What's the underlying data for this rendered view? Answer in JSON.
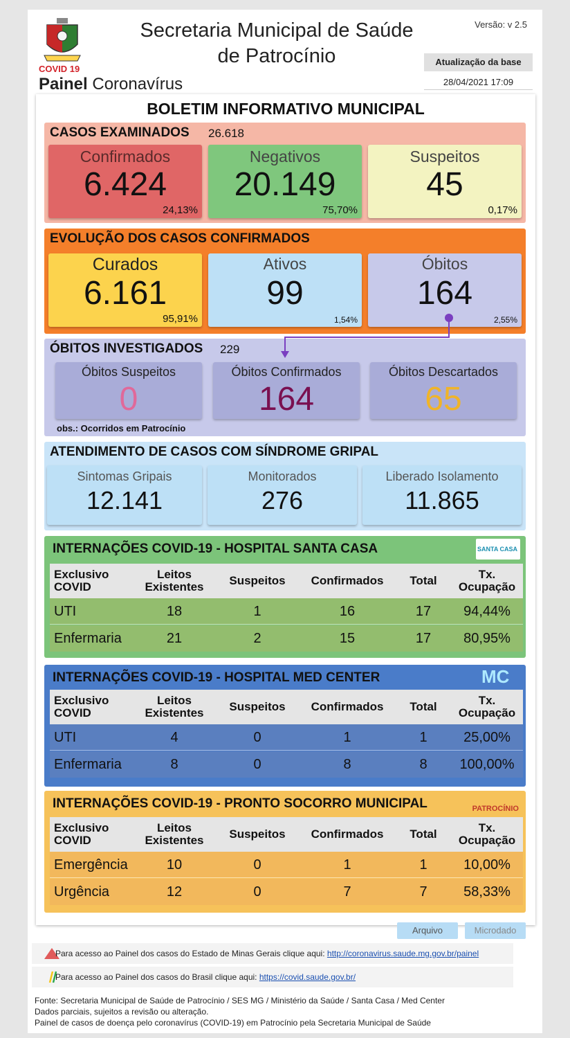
{
  "header": {
    "title_line1": "Secretaria Municipal de Saúde",
    "title_line2": "de Patrocínio",
    "covid_label": "COVID 19",
    "painel_bold": "Painel",
    "painel_rest": " Coronavírus",
    "version": "Versão: v 2.5",
    "update_label": "Atualização da base",
    "update_datetime": "28/04/2021 17:09"
  },
  "bulletin_title": "BOLETIM INFORMATIVO MUNICIPAL",
  "examined": {
    "title": "CASOS EXAMINADOS",
    "total": "26.618",
    "cards": [
      {
        "label": "Confirmados",
        "value": "6.424",
        "pct": "24,13%"
      },
      {
        "label": "Negativos",
        "value": "20.149",
        "pct": "75,70%"
      },
      {
        "label": "Suspeitos",
        "value": "45",
        "pct": "0,17%"
      }
    ]
  },
  "evolution": {
    "title": "EVOLUÇÃO DOS CASOS CONFIRMADOS",
    "cards": [
      {
        "label": "Curados",
        "value": "6.161",
        "pct": "95,91%"
      },
      {
        "label": "Ativos",
        "value": "99",
        "pct": "1,54%"
      },
      {
        "label": "Óbitos",
        "value": "164",
        "pct": "2,55%"
      }
    ]
  },
  "deaths": {
    "title": "ÓBITOS INVESTIGADOS",
    "total": "229",
    "cards": [
      {
        "label": "Óbitos Suspeitos",
        "value": "0"
      },
      {
        "label": "Óbitos Confirmados",
        "value": "164"
      },
      {
        "label": "Óbitos Descartados",
        "value": "65"
      }
    ],
    "note": "obs.: Ocorridos em Patrocínio"
  },
  "flu": {
    "title": "ATENDIMENTO DE CASOS COM SÍNDROME GRIPAL",
    "cards": [
      {
        "label": "Sintomas Gripais",
        "value": "12.141"
      },
      {
        "label": "Monitorados",
        "value": "276"
      },
      {
        "label": "Liberado Isolamento",
        "value": "11.865"
      }
    ]
  },
  "table_headers": {
    "col0_a": "Exclusivo",
    "col0_b": "COVID",
    "col1_a": "Leitos",
    "col1_b": "Existentes",
    "col2": "Suspeitos",
    "col3": "Confirmados",
    "col4": "Total",
    "col5_a": "Tx.",
    "col5_b": "Ocupação"
  },
  "hospitals": [
    {
      "title": "INTERNAÇÕES COVID-19 - HOSPITAL SANTA CASA",
      "logo_text": "SANTA CASA",
      "rows": [
        {
          "name": "UTI",
          "beds": "18",
          "susp": "1",
          "conf": "16",
          "total": "17",
          "occ": "94,44%"
        },
        {
          "name": "Enfermaria",
          "beds": "21",
          "susp": "2",
          "conf": "15",
          "total": "17",
          "occ": "80,95%"
        }
      ]
    },
    {
      "title": "INTERNAÇÕES COVID-19 - HOSPITAL MED CENTER",
      "logo_text": "MC",
      "rows": [
        {
          "name": "UTI",
          "beds": "4",
          "susp": "0",
          "conf": "1",
          "total": "1",
          "occ": "25,00%"
        },
        {
          "name": "Enfermaria",
          "beds": "8",
          "susp": "0",
          "conf": "8",
          "total": "8",
          "occ": "100,00%"
        }
      ]
    },
    {
      "title": "INTERNAÇÕES COVID-19 - PRONTO SOCORRO MUNICIPAL",
      "logo_text": "PATROCÍNIO",
      "rows": [
        {
          "name": "Emergência",
          "beds": "10",
          "susp": "0",
          "conf": "1",
          "total": "1",
          "occ": "10,00%"
        },
        {
          "name": "Urgência",
          "beds": "12",
          "susp": "0",
          "conf": "7",
          "total": "7",
          "occ": "58,33%"
        }
      ]
    }
  ],
  "buttons": {
    "arquivo": "Arquivo",
    "microdado": "Microdado"
  },
  "links": [
    {
      "text": "Para acesso ao Painel dos casos do Estado de Minas Gerais clique aqui: ",
      "url": "http://coronavirus.saude.mg.gov.br/painel"
    },
    {
      "text": "Para acesso ao Painel dos casos do Brasil clique aqui: ",
      "url": "https://covid.saude.gov.br/"
    }
  ],
  "footer": {
    "line1": "Fonte: Secretaria Municipal de Saúde de Patrocínio / SES MG / Ministério da Saúde / Santa Casa / Med Center",
    "line2": "Dados parciais, sujeitos a revisão ou alteração.",
    "line3": "Painel de casos de doença pelo coronavírus (COVID-19) em Patrocínio pela Secretaria Municipal de Saúde"
  },
  "colors": {
    "confirmed": "#e06666",
    "negative": "#7fc77d",
    "suspect": "#f3f3c1",
    "examined_bg": "#f5b7a6",
    "evolution_bg": "#f47f2a",
    "cured": "#fcd34d",
    "active": "#bde0f6",
    "deaths_card": "#c7c9ea",
    "deaths_bg": "#c7c9ea",
    "flu_bg": "#c9e4f8",
    "santacasa": "#7cc47a",
    "medcenter": "#4a7cc9",
    "prontosocorro": "#f6c25a"
  }
}
